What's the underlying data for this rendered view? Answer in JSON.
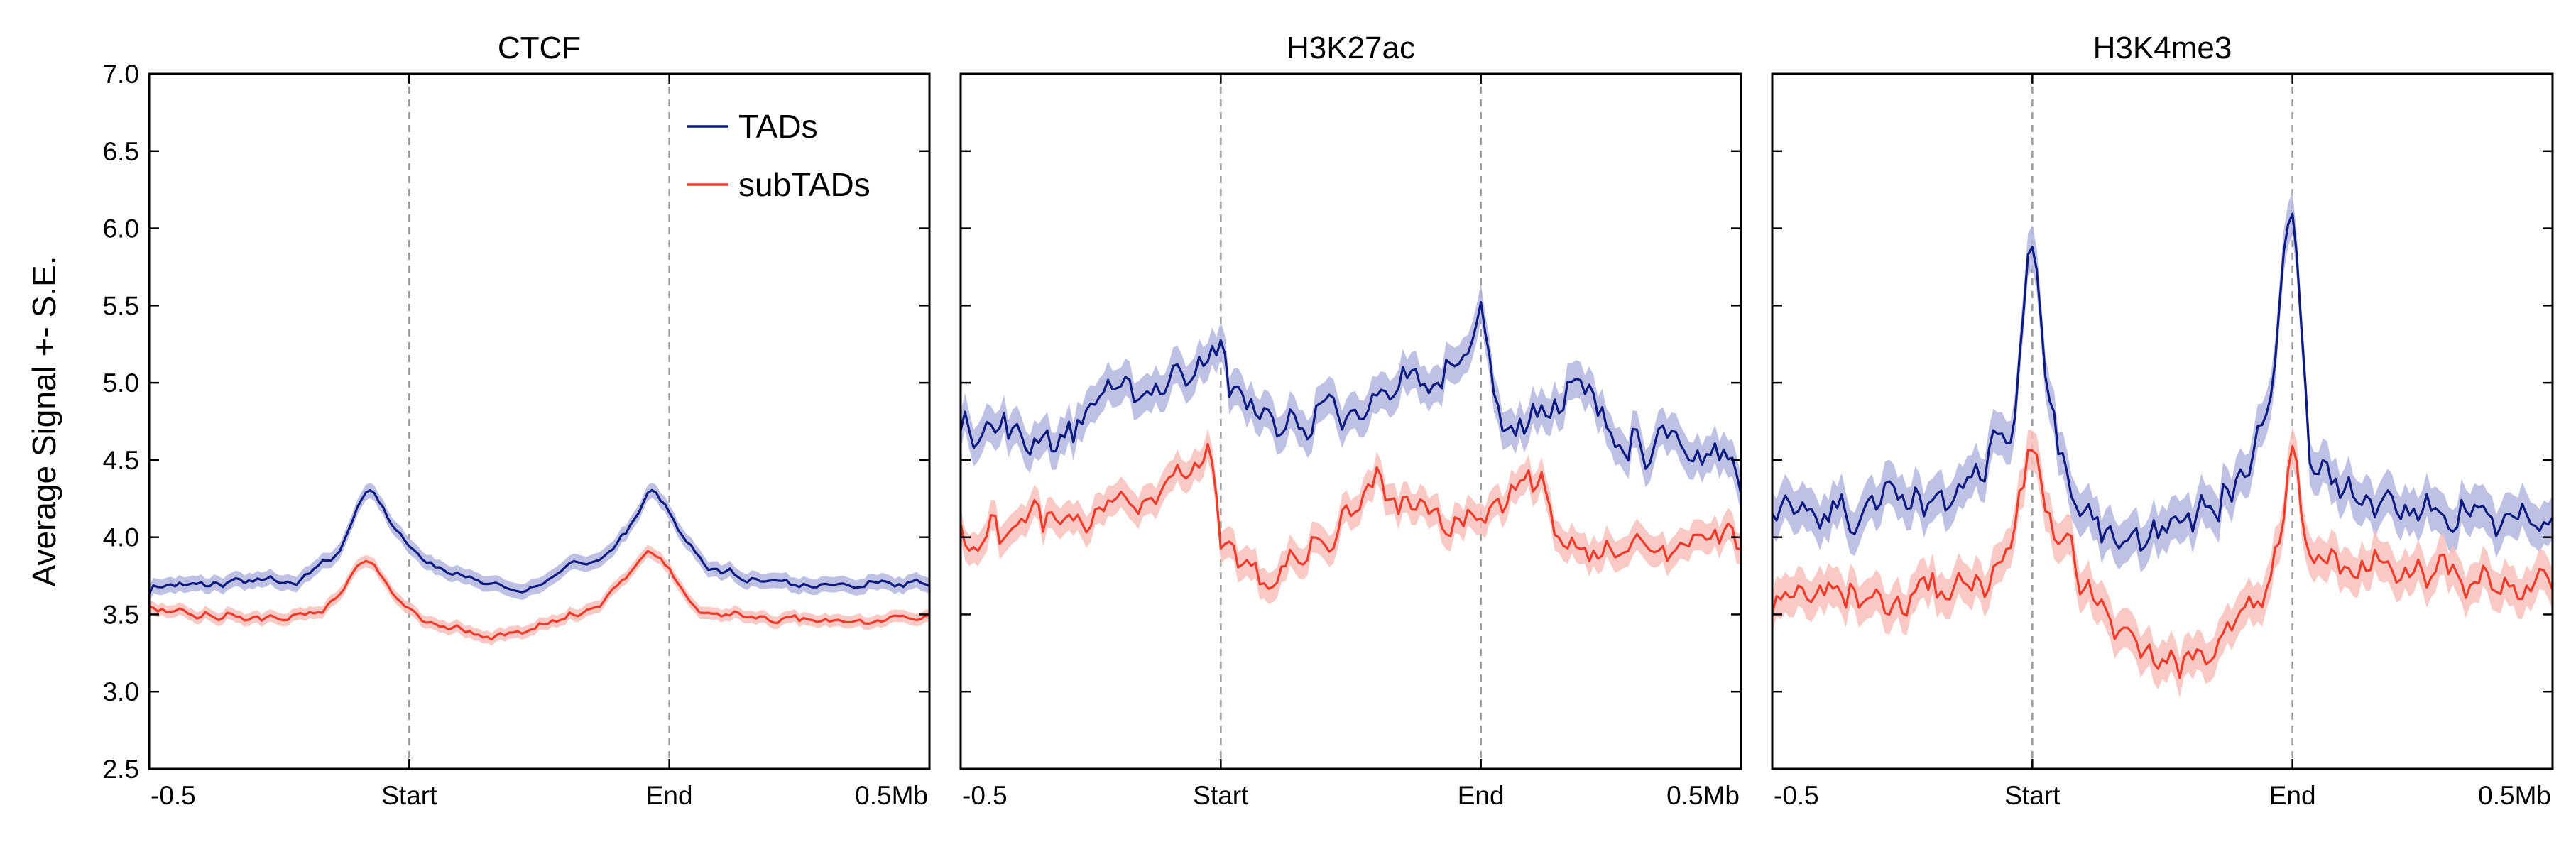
{
  "colors": {
    "tads_line": "#0d1a80",
    "tads_band": "#b3b6df",
    "subtads_line": "#f03a2a",
    "subtads_band": "#f8c1bb",
    "boundary": "#9a9a9a"
  },
  "shared": {
    "ylabel": "Average Signal +- S.E.",
    "ylim": [
      2.5,
      7.0
    ],
    "y_ticks": [
      "2.5",
      "3.0",
      "3.5",
      "4.0",
      "4.5",
      "5.0",
      "5.5",
      "6.0",
      "6.5",
      "7.0"
    ],
    "x_tick_labels": [
      "-0.5",
      "Start",
      "End",
      "0.5Mb"
    ],
    "legend": {
      "placement": "top-right",
      "entries": [
        "TADs",
        "subTADs"
      ]
    }
  },
  "chart_data": [
    {
      "type": "line",
      "title": "CTCF",
      "series": [
        {
          "name": "TADs",
          "anchors": [
            [
              0,
              3.68
            ],
            [
              18,
              3.7
            ],
            [
              34,
              3.72
            ],
            [
              44,
              3.9
            ],
            [
              50,
              4.34
            ],
            [
              56,
              4.1
            ],
            [
              64,
              3.82
            ],
            [
              80,
              3.68
            ],
            [
              88,
              3.66
            ],
            [
              96,
              3.78
            ],
            [
              106,
              3.9
            ],
            [
              112,
              4.1
            ],
            [
              116,
              4.34
            ],
            [
              122,
              4.05
            ],
            [
              128,
              3.82
            ],
            [
              140,
              3.72
            ],
            [
              150,
              3.68
            ],
            [
              180,
              3.7
            ]
          ],
          "noise": 0.035,
          "se": 0.05
        },
        {
          "name": "subTADs",
          "anchors": [
            [
              0,
              3.52
            ],
            [
              18,
              3.48
            ],
            [
              40,
              3.5
            ],
            [
              44,
              3.6
            ],
            [
              48,
              3.85
            ],
            [
              52,
              3.82
            ],
            [
              58,
              3.6
            ],
            [
              66,
              3.42
            ],
            [
              80,
              3.36
            ],
            [
              92,
              3.42
            ],
            [
              104,
              3.55
            ],
            [
              110,
              3.75
            ],
            [
              114,
              3.9
            ],
            [
              120,
              3.8
            ],
            [
              126,
              3.52
            ],
            [
              140,
              3.48
            ],
            [
              160,
              3.47
            ],
            [
              180,
              3.47
            ]
          ],
          "noise": 0.035,
          "se": 0.04
        }
      ]
    },
    {
      "type": "line",
      "title": "H3K27ac",
      "series": [
        {
          "name": "TADs",
          "anchors": [
            [
              0,
              4.65
            ],
            [
              20,
              4.6
            ],
            [
              40,
              5.0
            ],
            [
              55,
              5.1
            ],
            [
              60,
              5.4
            ],
            [
              62,
              4.9
            ],
            [
              80,
              4.75
            ],
            [
              100,
              4.95
            ],
            [
              116,
              5.1
            ],
            [
              120,
              5.5
            ],
            [
              124,
              4.7
            ],
            [
              140,
              4.95
            ],
            [
              160,
              4.55
            ],
            [
              180,
              4.5
            ]
          ],
          "noise": 0.17,
          "se": 0.12
        },
        {
          "name": "subTADs",
          "anchors": [
            [
              0,
              4.0
            ],
            [
              20,
              4.1
            ],
            [
              40,
              4.2
            ],
            [
              50,
              4.4
            ],
            [
              58,
              4.55
            ],
            [
              60,
              4.0
            ],
            [
              70,
              3.7
            ],
            [
              86,
              4.05
            ],
            [
              96,
              4.3
            ],
            [
              112,
              4.05
            ],
            [
              122,
              4.1
            ],
            [
              134,
              4.45
            ],
            [
              138,
              4.0
            ],
            [
              150,
              3.9
            ],
            [
              180,
              4.0
            ]
          ],
          "noise": 0.15,
          "se": 0.1
        }
      ]
    },
    {
      "type": "line",
      "title": "H3K4me3",
      "series": [
        {
          "name": "TADs",
          "anchors": [
            [
              0,
              4.2
            ],
            [
              30,
              4.15
            ],
            [
              50,
              4.45
            ],
            [
              56,
              4.8
            ],
            [
              60,
              6.2
            ],
            [
              63,
              5.0
            ],
            [
              70,
              4.25
            ],
            [
              80,
              3.9
            ],
            [
              100,
              4.1
            ],
            [
              110,
              4.5
            ],
            [
              116,
              5.1
            ],
            [
              120,
              6.3
            ],
            [
              124,
              4.5
            ],
            [
              140,
              4.15
            ],
            [
              180,
              4.1
            ]
          ],
          "noise": 0.18,
          "se": 0.14
        },
        {
          "name": "subTADs",
          "anchors": [
            [
              0,
              3.7
            ],
            [
              30,
              3.55
            ],
            [
              50,
              3.75
            ],
            [
              56,
              4.0
            ],
            [
              60,
              4.6
            ],
            [
              64,
              4.05
            ],
            [
              80,
              3.4
            ],
            [
              90,
              3.15
            ],
            [
              104,
              3.35
            ],
            [
              112,
              3.55
            ],
            [
              116,
              3.9
            ],
            [
              120,
              4.55
            ],
            [
              124,
              3.85
            ],
            [
              150,
              3.75
            ],
            [
              180,
              3.75
            ]
          ],
          "noise": 0.16,
          "se": 0.13
        }
      ]
    }
  ]
}
